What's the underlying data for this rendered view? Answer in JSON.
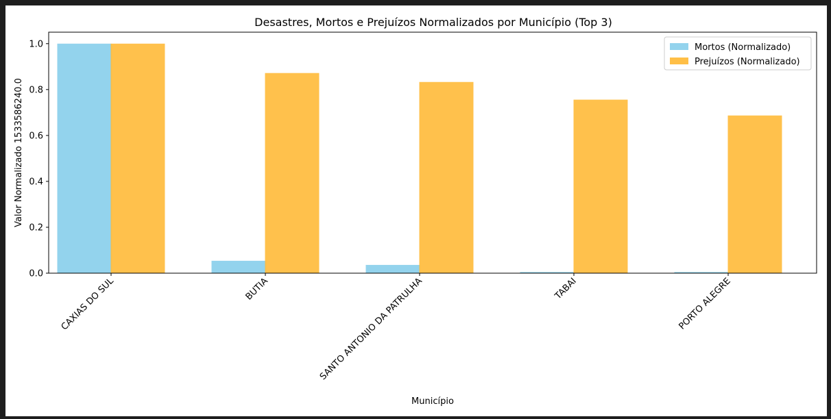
{
  "chart_data": {
    "type": "bar",
    "title": "Desastres, Mortos e Prejuízos Normalizados por Município (Top 3)",
    "xlabel": "Município",
    "ylabel": "Valor Normalizado 1533586240.0",
    "categories": [
      "CAXIAS DO SUL",
      "BUTIA",
      "SANTO ANTONIO DA PATRULHA",
      "TABAI",
      "PORTO ALEGRE"
    ],
    "series": [
      {
        "name": "Mortos (Normalizado)",
        "color": "#87ceeb",
        "values": [
          1.0,
          0.054,
          0.036,
          0.005,
          0.005
        ]
      },
      {
        "name": "Prejuízos (Normalizado)",
        "color": "#ffb833",
        "values": [
          1.0,
          0.872,
          0.833,
          0.756,
          0.687
        ]
      }
    ],
    "ylim": [
      0,
      1.05
    ],
    "yticks": [
      "0.0",
      "0.2",
      "0.4",
      "0.6",
      "0.8",
      "1.0"
    ],
    "legend_position": "top-right",
    "grid": false
  }
}
